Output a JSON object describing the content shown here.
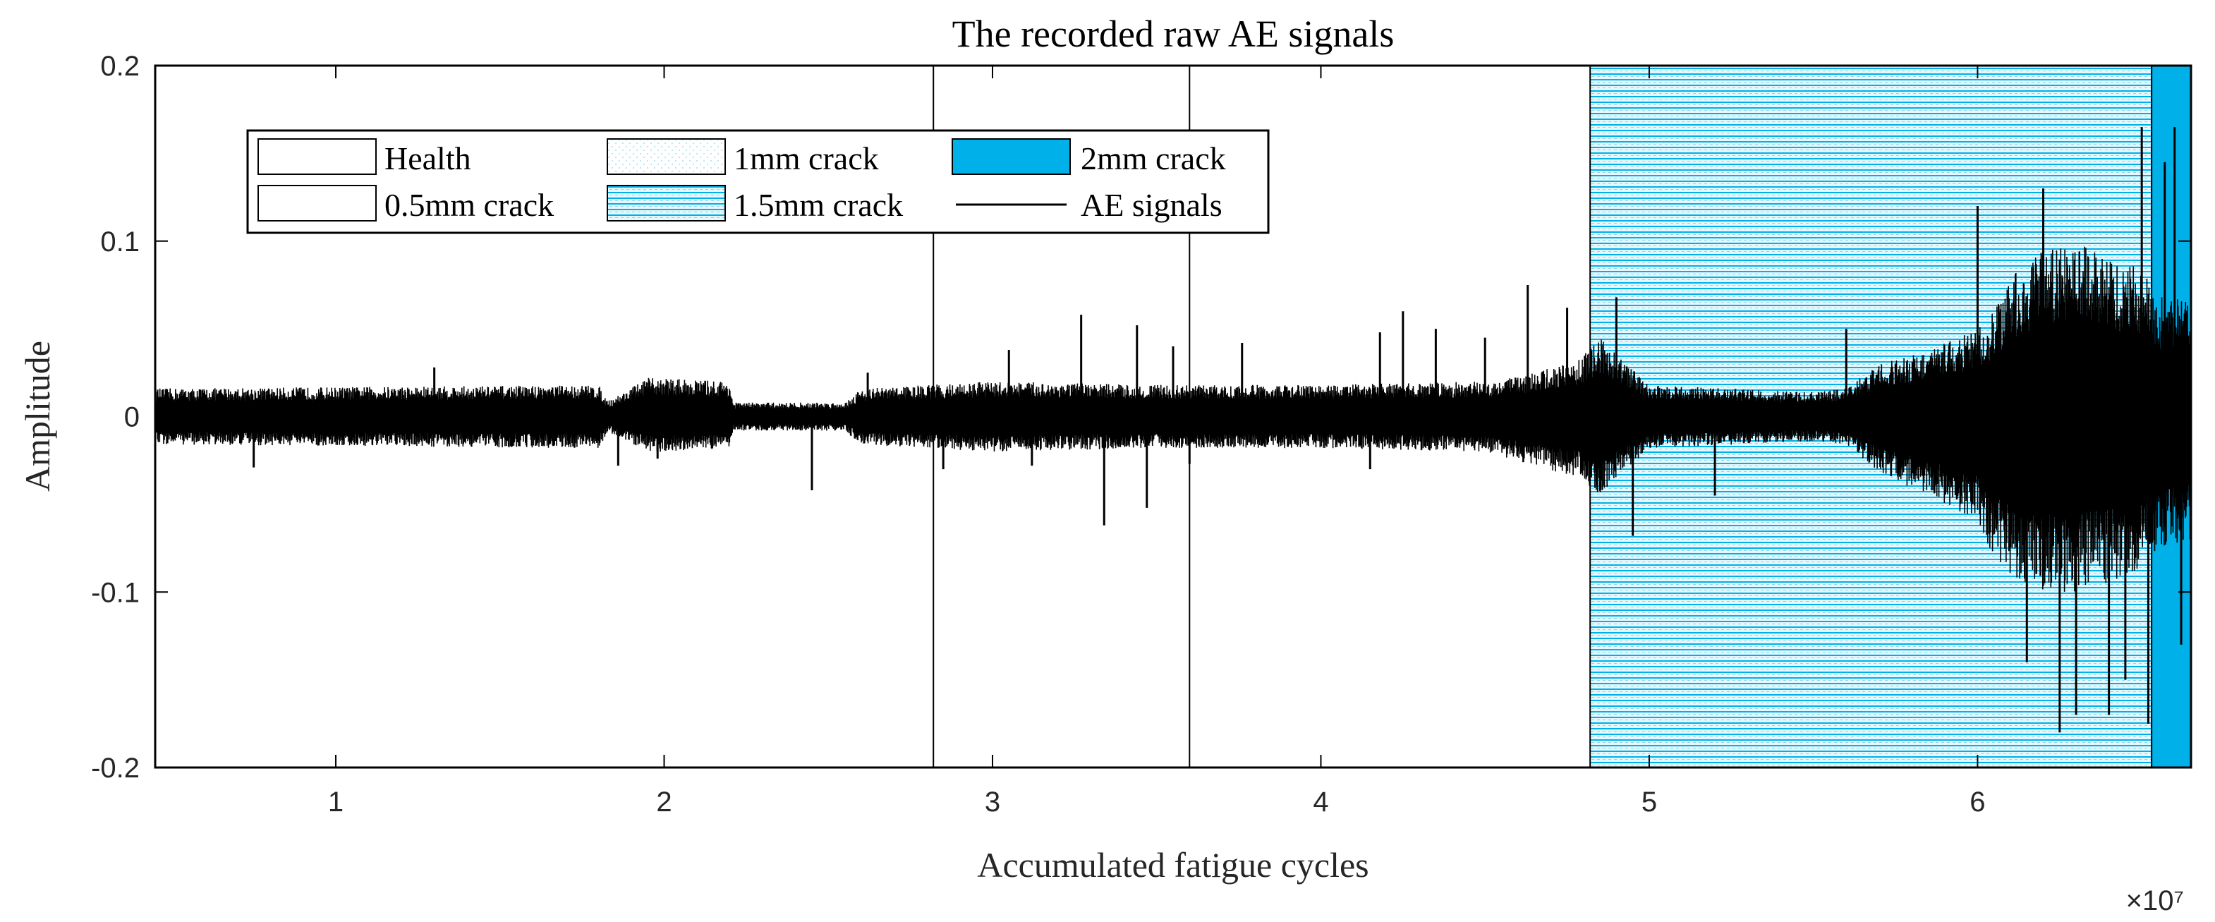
{
  "chart_data": {
    "type": "line",
    "title": "The recorded raw AE signals",
    "xlabel": "Accumulated fatigue cycles",
    "ylabel": "Amplitude",
    "x_exponent_label": "×10⁷",
    "x_multiplier": 10000000,
    "xlim": [
      0.45,
      6.65
    ],
    "ylim": [
      -0.2,
      0.2
    ],
    "xticks": [
      1,
      2,
      3,
      4,
      5,
      6
    ],
    "xtick_labels": [
      "1",
      "2",
      "3",
      "4",
      "5",
      "6"
    ],
    "yticks": [
      0.2,
      0.1,
      0,
      -0.1,
      -0.2
    ],
    "ytick_labels": [
      "0.2",
      "0.1",
      "0",
      "-0.1",
      "-0.2"
    ],
    "grid": false,
    "legend_placement": "top-left",
    "colors": {
      "signal": "#000000",
      "crack_2mm": "#00B0E8",
      "hatch_light": "#E4F7FC",
      "hatch_dark": "#00B0E8"
    },
    "stages": [
      {
        "name": "Health",
        "x_start": 0.45,
        "x_end": 2.82,
        "fill": "none"
      },
      {
        "name": "0.5mm crack",
        "x_start": 2.82,
        "x_end": 3.6,
        "fill": "none"
      },
      {
        "name": "1mm crack",
        "x_start": 3.6,
        "x_end": 4.82,
        "fill": "none"
      },
      {
        "name": "1.5mm crack",
        "x_start": 4.82,
        "x_end": 6.53,
        "fill": "hatch"
      },
      {
        "name": "2mm crack",
        "x_start": 6.53,
        "x_end": 6.65,
        "fill": "solid"
      }
    ],
    "stage_boundaries": [
      2.82,
      3.6,
      4.82,
      6.53
    ],
    "series": [
      {
        "name": "AE signals",
        "envelope": {
          "x": [
            0.45,
            1.8,
            1.83,
            1.95,
            2.0,
            2.2,
            2.21,
            2.55,
            2.6,
            3.0,
            3.5,
            4.0,
            4.5,
            4.65,
            4.78,
            4.85,
            5.0,
            5.5,
            5.6,
            5.7,
            5.85,
            6.0,
            6.05,
            6.1,
            6.2,
            6.3,
            6.4,
            6.5,
            6.55,
            6.65
          ],
          "upper": [
            0.016,
            0.018,
            0.009,
            0.022,
            0.022,
            0.02,
            0.008,
            0.008,
            0.016,
            0.02,
            0.018,
            0.018,
            0.02,
            0.025,
            0.032,
            0.045,
            0.018,
            0.014,
            0.016,
            0.03,
            0.038,
            0.05,
            0.06,
            0.08,
            0.095,
            0.1,
            0.09,
            0.085,
            0.07,
            0.065
          ],
          "lower": [
            -0.016,
            -0.018,
            -0.009,
            -0.02,
            -0.02,
            -0.018,
            -0.008,
            -0.008,
            -0.016,
            -0.02,
            -0.018,
            -0.018,
            -0.02,
            -0.028,
            -0.035,
            -0.045,
            -0.018,
            -0.014,
            -0.016,
            -0.032,
            -0.045,
            -0.06,
            -0.08,
            -0.09,
            -0.1,
            -0.1,
            -0.095,
            -0.09,
            -0.075,
            -0.07
          ]
        },
        "spikes": [
          {
            "x": 0.75,
            "y": -0.029
          },
          {
            "x": 1.3,
            "y": 0.028
          },
          {
            "x": 1.86,
            "y": -0.028
          },
          {
            "x": 1.98,
            "y": -0.024
          },
          {
            "x": 2.45,
            "y": -0.042
          },
          {
            "x": 2.62,
            "y": 0.025
          },
          {
            "x": 2.85,
            "y": -0.03
          },
          {
            "x": 3.05,
            "y": 0.038
          },
          {
            "x": 3.12,
            "y": -0.028
          },
          {
            "x": 3.27,
            "y": 0.058
          },
          {
            "x": 3.34,
            "y": -0.062
          },
          {
            "x": 3.44,
            "y": 0.052
          },
          {
            "x": 3.47,
            "y": -0.052
          },
          {
            "x": 3.55,
            "y": 0.04
          },
          {
            "x": 3.6,
            "y": -0.027
          },
          {
            "x": 3.76,
            "y": 0.042
          },
          {
            "x": 4.15,
            "y": -0.03
          },
          {
            "x": 4.18,
            "y": 0.048
          },
          {
            "x": 4.25,
            "y": 0.06
          },
          {
            "x": 4.35,
            "y": 0.05
          },
          {
            "x": 4.5,
            "y": 0.045
          },
          {
            "x": 4.63,
            "y": 0.075
          },
          {
            "x": 4.75,
            "y": 0.062
          },
          {
            "x": 4.9,
            "y": 0.068
          },
          {
            "x": 4.95,
            "y": -0.068
          },
          {
            "x": 5.2,
            "y": -0.045
          },
          {
            "x": 5.6,
            "y": 0.05
          },
          {
            "x": 6.0,
            "y": 0.12
          },
          {
            "x": 6.15,
            "y": -0.14
          },
          {
            "x": 6.2,
            "y": 0.13
          },
          {
            "x": 6.25,
            "y": -0.18
          },
          {
            "x": 6.3,
            "y": -0.17
          },
          {
            "x": 6.4,
            "y": -0.17
          },
          {
            "x": 6.45,
            "y": -0.15
          },
          {
            "x": 6.5,
            "y": 0.165
          },
          {
            "x": 6.52,
            "y": -0.175
          },
          {
            "x": 6.57,
            "y": 0.145
          },
          {
            "x": 6.6,
            "y": 0.165
          },
          {
            "x": 6.62,
            "y": -0.13
          }
        ]
      }
    ],
    "legend": {
      "entries": [
        {
          "label": "Health",
          "swatch": "empty"
        },
        {
          "label": "1mm crack",
          "swatch": "dotted"
        },
        {
          "label": "2mm crack",
          "swatch": "solid"
        },
        {
          "label": "0.5mm crack",
          "swatch": "empty"
        },
        {
          "label": "1.5mm crack",
          "swatch": "hatch"
        },
        {
          "label": "AE signals",
          "swatch": "line"
        }
      ]
    }
  }
}
